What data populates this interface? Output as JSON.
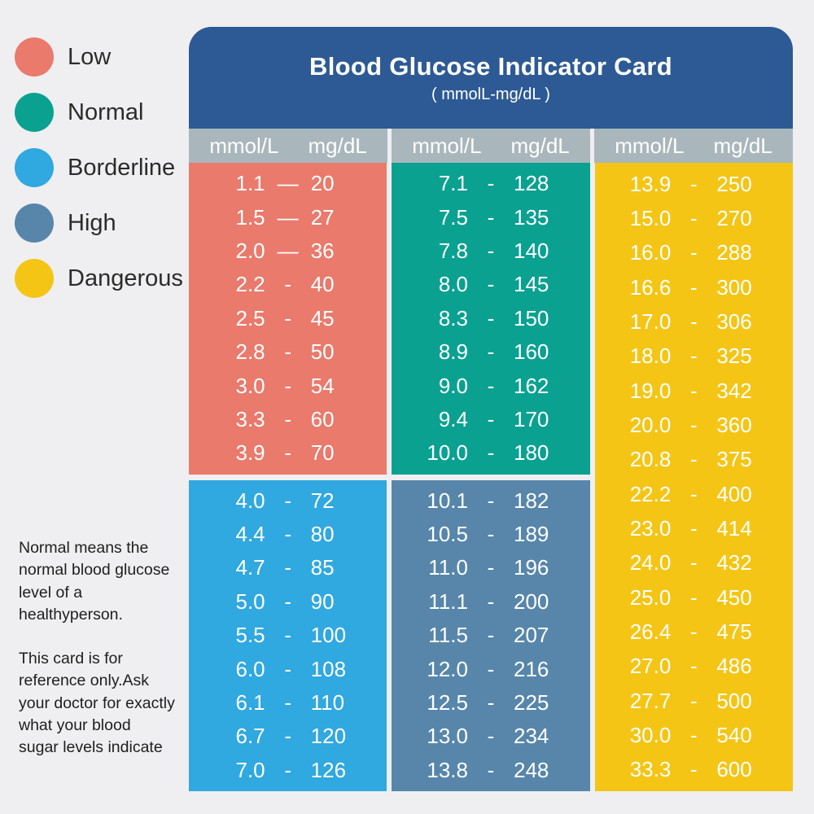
{
  "colors": {
    "low": "#E97A6C",
    "normal": "#0AA191",
    "borderline": "#30A8E0",
    "high": "#5786AA",
    "dangerous": "#F4C515",
    "header_bg": "#2D5A94",
    "unit_strip_bg": "#A9B7BC",
    "page_bg": "#EFEFF1",
    "text_dark": "#2B2B2B",
    "text_light": "#FFFFFF"
  },
  "legend": {
    "items": [
      {
        "label": "Low",
        "color_key": "low"
      },
      {
        "label": "Normal",
        "color_key": "normal"
      },
      {
        "label": "Borderline",
        "color_key": "borderline"
      },
      {
        "label": "High",
        "color_key": "high"
      },
      {
        "label": "Dangerous",
        "color_key": "dangerous"
      }
    ]
  },
  "card": {
    "title": "Blood Glucose Indicator Card",
    "subtitle": "( mmolL-mg/dL )"
  },
  "table": {
    "unit_headers": [
      {
        "left": "mmol/L",
        "right": "mg/dL"
      },
      {
        "left": "mmol/L",
        "right": "mg/dL"
      },
      {
        "left": "mmol/L",
        "right": "mg/dL"
      }
    ],
    "columns": [
      {
        "sections": [
          {
            "color_key": "low",
            "level": "Low",
            "rows": [
              {
                "mmol": "1.1",
                "dash": "—",
                "mg": "20"
              },
              {
                "mmol": "1.5",
                "dash": "—",
                "mg": "27"
              },
              {
                "mmol": "2.0",
                "dash": "—",
                "mg": "36"
              },
              {
                "mmol": "2.2",
                "dash": "-",
                "mg": "40"
              },
              {
                "mmol": "2.5",
                "dash": "-",
                "mg": "45"
              },
              {
                "mmol": "2.8",
                "dash": "-",
                "mg": "50"
              },
              {
                "mmol": "3.0",
                "dash": "-",
                "mg": "54"
              },
              {
                "mmol": "3.3",
                "dash": "-",
                "mg": "60"
              },
              {
                "mmol": "3.9",
                "dash": "-",
                "mg": "70"
              }
            ]
          },
          {
            "color_key": "borderline",
            "level": "Borderline",
            "rows": [
              {
                "mmol": "4.0",
                "dash": "-",
                "mg": "72"
              },
              {
                "mmol": "4.4",
                "dash": "-",
                "mg": "80"
              },
              {
                "mmol": "4.7",
                "dash": "-",
                "mg": "85"
              },
              {
                "mmol": "5.0",
                "dash": "-",
                "mg": "90"
              },
              {
                "mmol": "5.5",
                "dash": "-",
                "mg": "100"
              },
              {
                "mmol": "6.0",
                "dash": "-",
                "mg": "108"
              },
              {
                "mmol": "6.1",
                "dash": "-",
                "mg": "110"
              },
              {
                "mmol": "6.7",
                "dash": "-",
                "mg": "120"
              },
              {
                "mmol": "7.0",
                "dash": "-",
                "mg": "126"
              }
            ]
          }
        ]
      },
      {
        "sections": [
          {
            "color_key": "normal",
            "level": "Normal",
            "rows": [
              {
                "mmol": "7.1",
                "dash": "-",
                "mg": "128"
              },
              {
                "mmol": "7.5",
                "dash": "-",
                "mg": "135"
              },
              {
                "mmol": "7.8",
                "dash": "-",
                "mg": "140"
              },
              {
                "mmol": "8.0",
                "dash": "-",
                "mg": "145"
              },
              {
                "mmol": "8.3",
                "dash": "-",
                "mg": "150"
              },
              {
                "mmol": "8.9",
                "dash": "-",
                "mg": "160"
              },
              {
                "mmol": "9.0",
                "dash": "-",
                "mg": "162"
              },
              {
                "mmol": "9.4",
                "dash": "-",
                "mg": "170"
              },
              {
                "mmol": "10.0",
                "dash": "-",
                "mg": "180"
              }
            ]
          },
          {
            "color_key": "high",
            "level": "High",
            "rows": [
              {
                "mmol": "10.1",
                "dash": "-",
                "mg": "182"
              },
              {
                "mmol": "10.5",
                "dash": "-",
                "mg": "189"
              },
              {
                "mmol": "11.0",
                "dash": "-",
                "mg": "196"
              },
              {
                "mmol": "11.1",
                "dash": "-",
                "mg": "200"
              },
              {
                "mmol": "11.5",
                "dash": "-",
                "mg": "207"
              },
              {
                "mmol": "12.0",
                "dash": "-",
                "mg": "216"
              },
              {
                "mmol": "12.5",
                "dash": "-",
                "mg": "225"
              },
              {
                "mmol": "13.0",
                "dash": "-",
                "mg": "234"
              },
              {
                "mmol": "13.8",
                "dash": "-",
                "mg": "248"
              }
            ]
          }
        ]
      },
      {
        "sections": [
          {
            "color_key": "dangerous",
            "level": "Dangerous",
            "rows": [
              {
                "mmol": "13.9",
                "dash": "-",
                "mg": "250"
              },
              {
                "mmol": "15.0",
                "dash": "-",
                "mg": "270"
              },
              {
                "mmol": "16.0",
                "dash": "-",
                "mg": "288"
              },
              {
                "mmol": "16.6",
                "dash": "-",
                "mg": "300"
              },
              {
                "mmol": "17.0",
                "dash": "-",
                "mg": "306"
              },
              {
                "mmol": "18.0",
                "dash": "-",
                "mg": "325"
              },
              {
                "mmol": "19.0",
                "dash": "-",
                "mg": "342"
              },
              {
                "mmol": "20.0",
                "dash": "-",
                "mg": "360"
              },
              {
                "mmol": "20.8",
                "dash": "-",
                "mg": "375"
              },
              {
                "mmol": "22.2",
                "dash": "-",
                "mg": "400"
              },
              {
                "mmol": "23.0",
                "dash": "-",
                "mg": "414"
              },
              {
                "mmol": "24.0",
                "dash": "-",
                "mg": "432"
              },
              {
                "mmol": "25.0",
                "dash": "-",
                "mg": "450"
              },
              {
                "mmol": "26.4",
                "dash": "-",
                "mg": "475"
              },
              {
                "mmol": "27.0",
                "dash": "-",
                "mg": "486"
              },
              {
                "mmol": "27.7",
                "dash": "-",
                "mg": "500"
              },
              {
                "mmol": "30.0",
                "dash": "-",
                "mg": "540"
              },
              {
                "mmol": "33.3",
                "dash": "-",
                "mg": "600"
              }
            ]
          }
        ]
      }
    ]
  },
  "notes": [
    "Normal means the\nnormal blood glucose\nlevel of a healthyperson.",
    "This card is for\nreference only.Ask\nyour doctor for exactly\nwhat your blood\nsugar levels indicate"
  ]
}
